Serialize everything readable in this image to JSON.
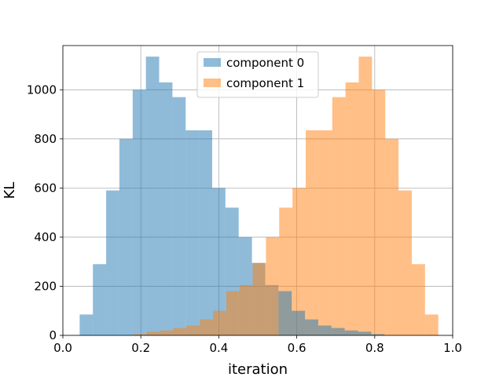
{
  "chart_data": {
    "type": "bar",
    "subtype": "overlapping-histogram",
    "xlabel": "iteration",
    "ylabel": "KL",
    "xlim": [
      0.0,
      1.0
    ],
    "ylim": [
      0,
      1180
    ],
    "xticks": [
      "0.0",
      "0.2",
      "0.4",
      "0.6",
      "0.8",
      "1.0"
    ],
    "yticks": [
      "0",
      "200",
      "400",
      "600",
      "800",
      "1000"
    ],
    "grid": true,
    "legend_position": "top-center",
    "series": [
      {
        "name": "component 0",
        "color": "#1f77b4",
        "opacity": 0.5,
        "bins": [
          {
            "x0": 0.043,
            "x1": 0.077,
            "value": 85
          },
          {
            "x0": 0.077,
            "x1": 0.111,
            "value": 290
          },
          {
            "x0": 0.111,
            "x1": 0.145,
            "value": 590
          },
          {
            "x0": 0.145,
            "x1": 0.179,
            "value": 800
          },
          {
            "x0": 0.179,
            "x1": 0.213,
            "value": 1000
          },
          {
            "x0": 0.213,
            "x1": 0.247,
            "value": 1135
          },
          {
            "x0": 0.247,
            "x1": 0.281,
            "value": 1030
          },
          {
            "x0": 0.281,
            "x1": 0.315,
            "value": 970
          },
          {
            "x0": 0.315,
            "x1": 0.349,
            "value": 835
          },
          {
            "x0": 0.349,
            "x1": 0.383,
            "value": 835
          },
          {
            "x0": 0.383,
            "x1": 0.417,
            "value": 600
          },
          {
            "x0": 0.417,
            "x1": 0.451,
            "value": 520
          },
          {
            "x0": 0.451,
            "x1": 0.485,
            "value": 400
          },
          {
            "x0": 0.485,
            "x1": 0.519,
            "value": 295
          },
          {
            "x0": 0.519,
            "x1": 0.553,
            "value": 205
          }
        ]
      },
      {
        "name": "component 1",
        "color": "#ff7f0e",
        "opacity": 0.5,
        "bins": [
          {
            "x0": 0.181,
            "x1": 0.215,
            "value": 5
          },
          {
            "x0": 0.215,
            "x1": 0.249,
            "value": 15
          },
          {
            "x0": 0.249,
            "x1": 0.283,
            "value": 20
          },
          {
            "x0": 0.283,
            "x1": 0.317,
            "value": 30
          },
          {
            "x0": 0.317,
            "x1": 0.351,
            "value": 40
          },
          {
            "x0": 0.351,
            "x1": 0.385,
            "value": 65
          },
          {
            "x0": 0.385,
            "x1": 0.419,
            "value": 100
          },
          {
            "x0": 0.419,
            "x1": 0.453,
            "value": 180
          },
          {
            "x0": 0.453,
            "x1": 0.487,
            "value": 205
          },
          {
            "x0": 0.487,
            "x1": 0.521,
            "value": 295
          },
          {
            "x0": 0.521,
            "x1": 0.555,
            "value": 400
          },
          {
            "x0": 0.555,
            "x1": 0.589,
            "value": 520
          },
          {
            "x0": 0.589,
            "x1": 0.623,
            "value": 600
          },
          {
            "x0": 0.623,
            "x1": 0.657,
            "value": 835
          },
          {
            "x0": 0.657,
            "x1": 0.691,
            "value": 835
          },
          {
            "x0": 0.691,
            "x1": 0.725,
            "value": 970
          },
          {
            "x0": 0.725,
            "x1": 0.759,
            "value": 1030
          },
          {
            "x0": 0.759,
            "x1": 0.793,
            "value": 1135
          },
          {
            "x0": 0.793,
            "x1": 0.827,
            "value": 1000
          },
          {
            "x0": 0.827,
            "x1": 0.861,
            "value": 800
          },
          {
            "x0": 0.861,
            "x1": 0.895,
            "value": 590
          },
          {
            "x0": 0.895,
            "x1": 0.929,
            "value": 290
          },
          {
            "x0": 0.929,
            "x1": 0.963,
            "value": 85
          }
        ]
      },
      {
        "name": "component 0",
        "color": "#1f77b4",
        "opacity": 0.5,
        "bins": [
          {
            "x0": 0.553,
            "x1": 0.587,
            "value": 180
          },
          {
            "x0": 0.587,
            "x1": 0.621,
            "value": 100
          },
          {
            "x0": 0.621,
            "x1": 0.655,
            "value": 65
          },
          {
            "x0": 0.655,
            "x1": 0.689,
            "value": 40
          },
          {
            "x0": 0.689,
            "x1": 0.723,
            "value": 30
          },
          {
            "x0": 0.723,
            "x1": 0.757,
            "value": 20
          },
          {
            "x0": 0.757,
            "x1": 0.791,
            "value": 15
          },
          {
            "x0": 0.791,
            "x1": 0.825,
            "value": 5
          }
        ]
      }
    ]
  }
}
